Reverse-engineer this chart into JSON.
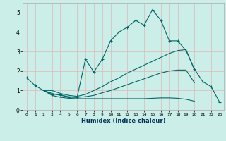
{
  "xlabel": "Humidex (Indice chaleur)",
  "ylabel": "",
  "xlim": [
    -0.5,
    23.5
  ],
  "ylim": [
    0,
    5.5
  ],
  "background_color": "#cceee8",
  "grid_color": "#ddb8b8",
  "line_color": "#006868",
  "xticks": [
    0,
    1,
    2,
    3,
    4,
    5,
    6,
    7,
    8,
    9,
    10,
    11,
    12,
    13,
    14,
    15,
    16,
    17,
    18,
    19,
    20,
    21,
    22,
    23
  ],
  "yticks": [
    0,
    1,
    2,
    3,
    4,
    5
  ],
  "lines": [
    {
      "x": [
        0,
        1,
        2,
        3,
        4,
        5,
        6,
        7,
        8,
        9,
        10,
        11,
        12,
        13,
        14,
        15,
        16,
        17,
        18,
        19,
        20,
        21,
        22,
        23
      ],
      "y": [
        1.65,
        1.25,
        1.0,
        0.8,
        0.8,
        0.65,
        0.65,
        2.6,
        1.95,
        2.6,
        3.55,
        4.0,
        4.25,
        4.6,
        4.35,
        5.15,
        4.6,
        3.55,
        3.55,
        3.05,
        2.1,
        1.45,
        1.2,
        0.4
      ],
      "marker": true
    },
    {
      "x": [
        2,
        3,
        4,
        5,
        6,
        7,
        8,
        9,
        10,
        11,
        12,
        13,
        14,
        15,
        16,
        17,
        18,
        19,
        20
      ],
      "y": [
        1.0,
        1.0,
        0.85,
        0.75,
        0.7,
        0.8,
        1.0,
        1.2,
        1.45,
        1.65,
        1.9,
        2.1,
        2.3,
        2.5,
        2.7,
        2.9,
        3.05,
        3.1,
        2.05
      ],
      "marker": false
    },
    {
      "x": [
        2,
        3,
        4,
        5,
        6,
        7,
        8,
        9,
        10,
        11,
        12,
        13,
        14,
        15,
        16,
        17,
        18,
        19,
        20
      ],
      "y": [
        1.0,
        0.85,
        0.75,
        0.68,
        0.65,
        0.68,
        0.75,
        0.88,
        1.0,
        1.15,
        1.3,
        1.45,
        1.6,
        1.75,
        1.9,
        2.0,
        2.05,
        2.05,
        1.4
      ],
      "marker": false
    },
    {
      "x": [
        2,
        3,
        4,
        5,
        6,
        7,
        8,
        9,
        10,
        11,
        12,
        13,
        14,
        15,
        16,
        17,
        18,
        19,
        20
      ],
      "y": [
        1.0,
        0.75,
        0.65,
        0.6,
        0.58,
        0.58,
        0.58,
        0.58,
        0.58,
        0.58,
        0.58,
        0.58,
        0.58,
        0.6,
        0.62,
        0.62,
        0.6,
        0.55,
        0.45
      ],
      "marker": false
    }
  ]
}
